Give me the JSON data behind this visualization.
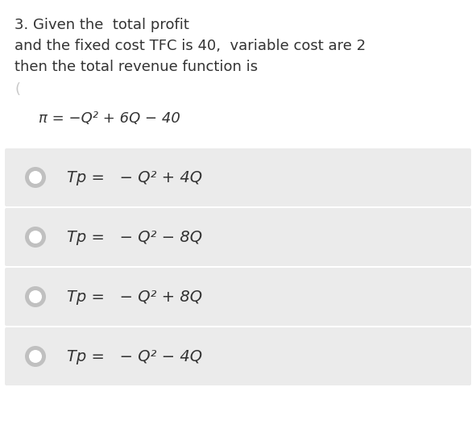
{
  "background_color": "#ffffff",
  "option_bg_color": "#ebebeb",
  "text_color": "#333333",
  "question_lines": [
    "3. Given the  total profit",
    "and the fixed cost TFC is 40,  variable cost are 2",
    "then the total revenue function is"
  ],
  "partial_answer_line": "(",
  "formula_line": "π = −Q² + 6Q − 40",
  "options": [
    "Tp =   − Q² + 4Q",
    "Tp =   − Q² − 8Q",
    "Tp =   − Q² + 8Q",
    "Tp =   − Q² − 4Q"
  ],
  "fig_width": 5.91,
  "fig_height": 5.37,
  "dpi": 100
}
